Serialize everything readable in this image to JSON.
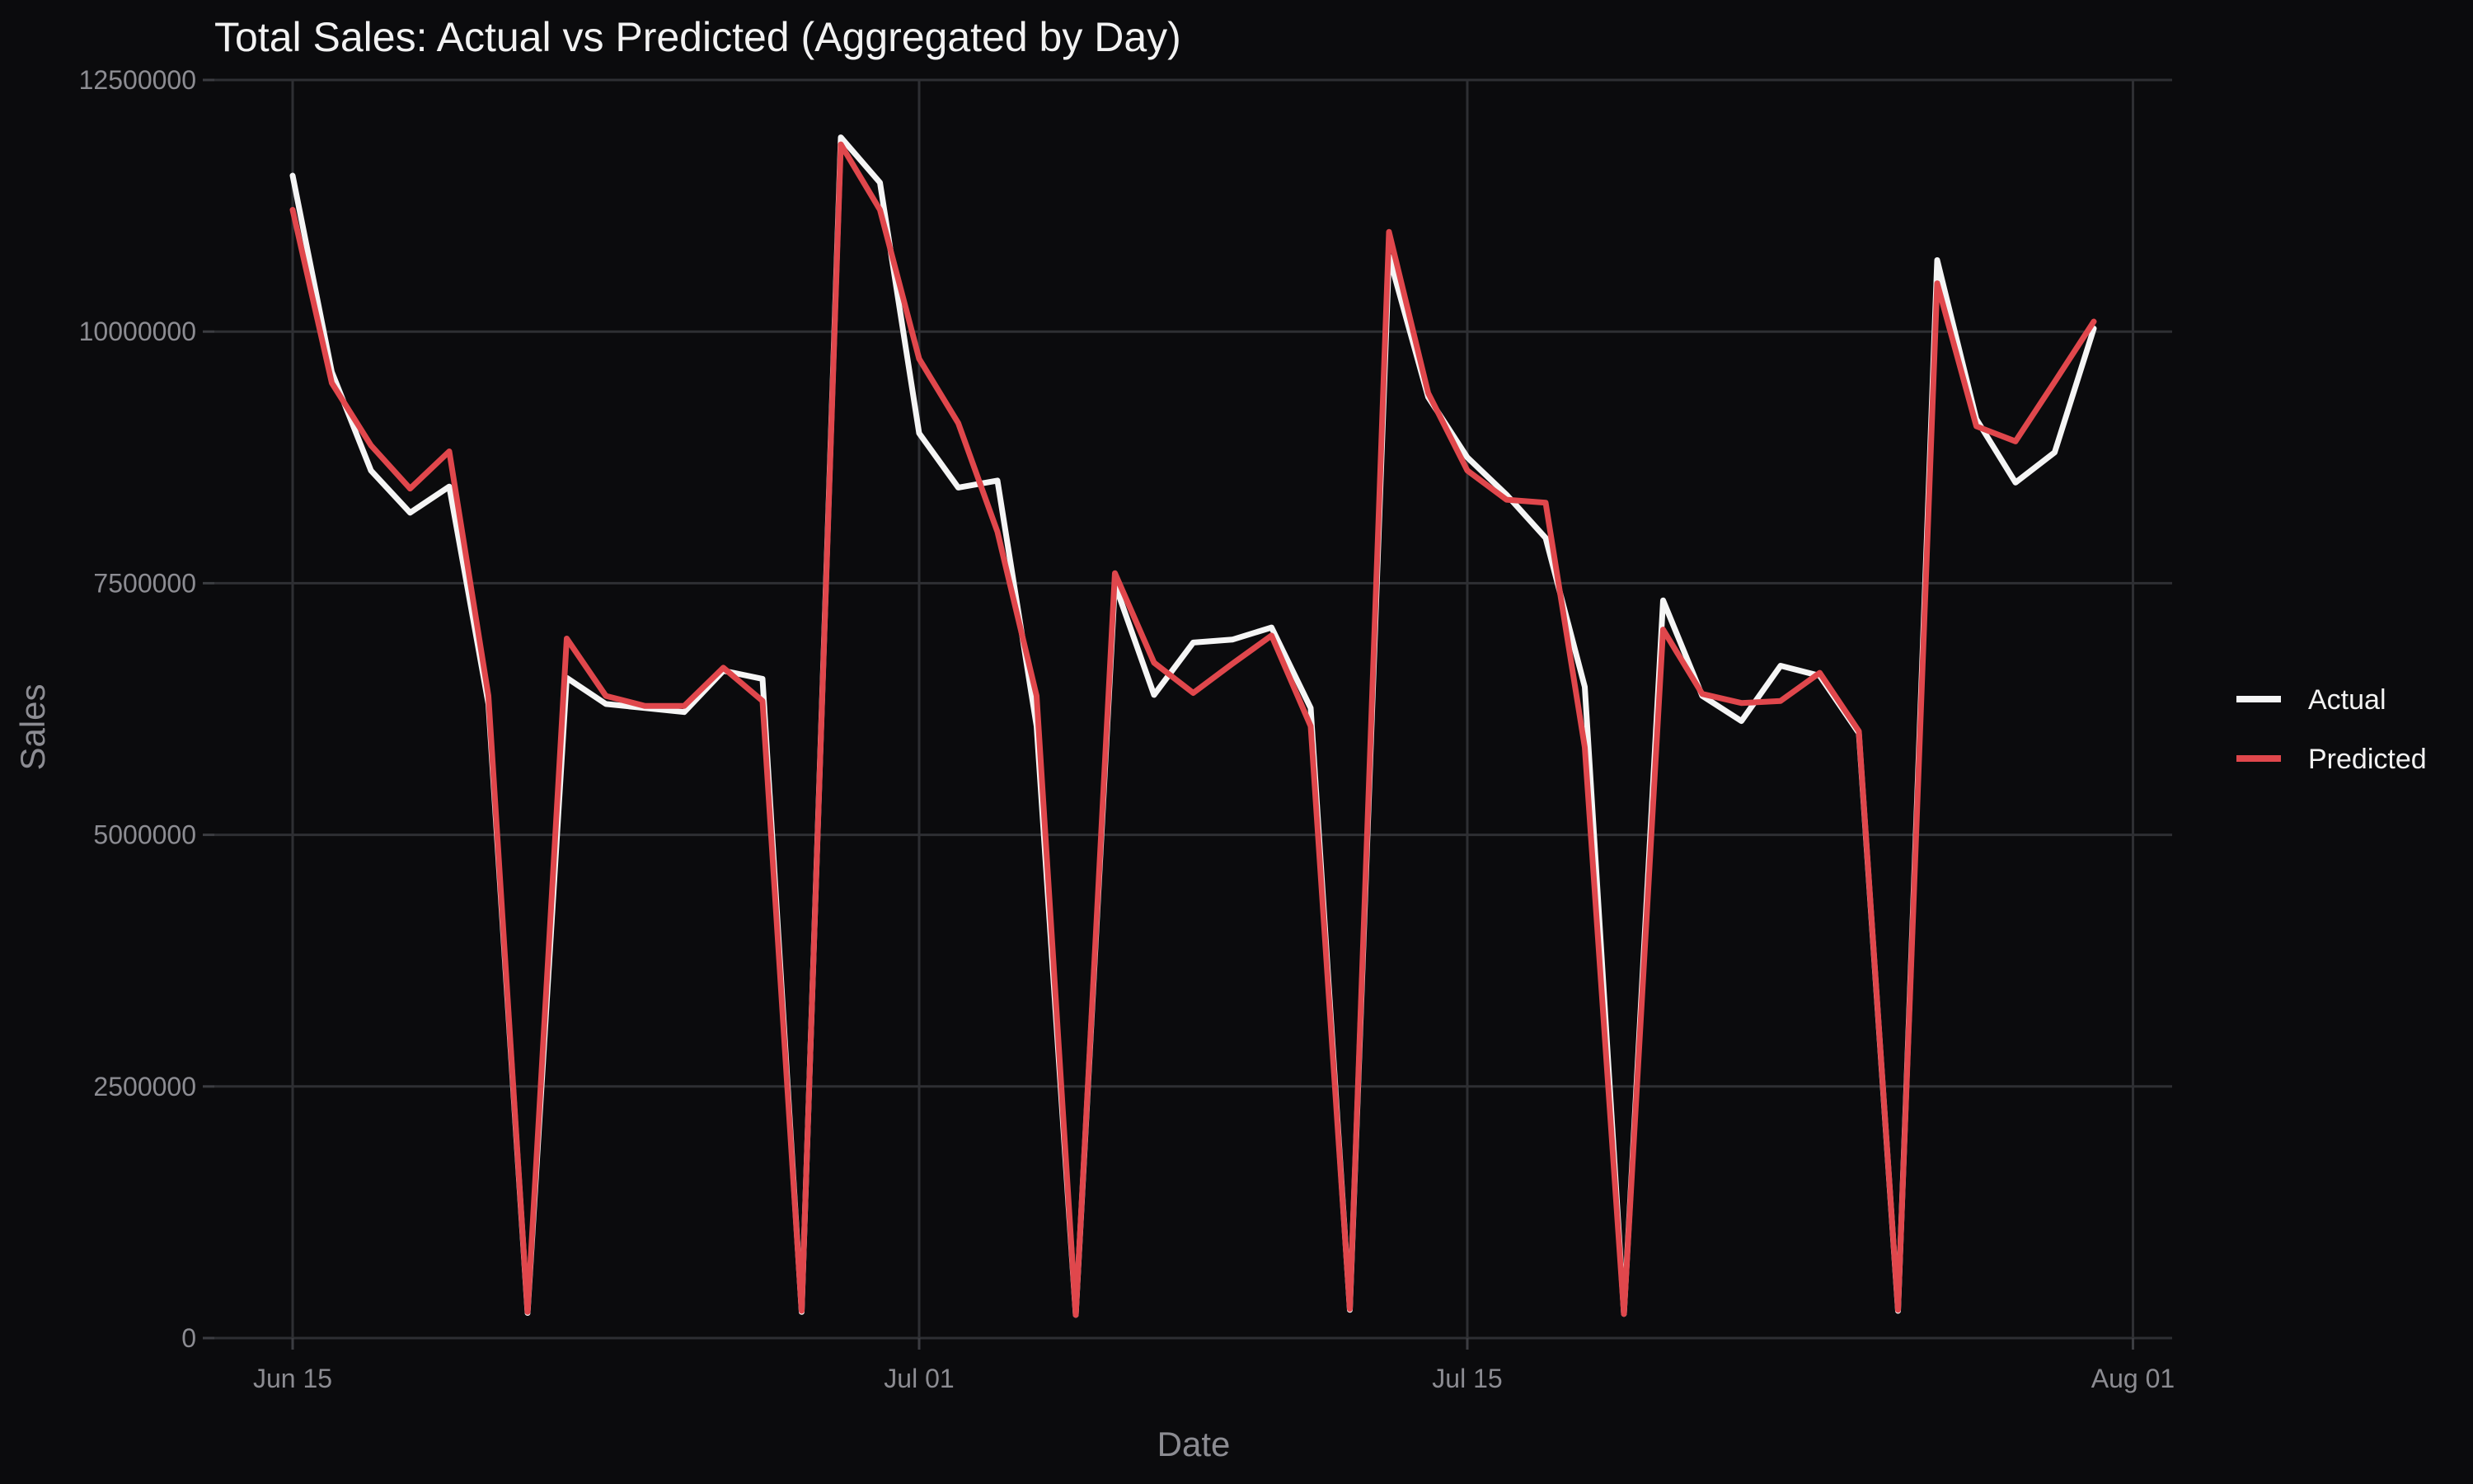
{
  "chart_data": {
    "type": "line",
    "title": "Total Sales: Actual vs Predicted (Aggregated by Day)",
    "xlabel": "Date",
    "ylabel": "Sales",
    "x_axis": {
      "scale": "date",
      "ticks": [
        "2023-06-15",
        "2023-07-01",
        "2023-07-15",
        "2023-08-01"
      ],
      "tick_labels": [
        "Jun 15",
        "Jul 01",
        "Jul 15",
        "Aug 01"
      ]
    },
    "y_axis": {
      "ticks": [
        0,
        2500000,
        5000000,
        7500000,
        10000000,
        12500000
      ],
      "tick_labels": [
        "0",
        "2500000",
        "5000000",
        "7500000",
        "10000000",
        "12500000"
      ],
      "ylim": [
        0,
        12500000
      ]
    },
    "xlim": [
      "2023-06-13",
      "2023-08-02"
    ],
    "grid": true,
    "legend_position": "right",
    "x": [
      "2023-06-15",
      "2023-06-16",
      "2023-06-17",
      "2023-06-18",
      "2023-06-19",
      "2023-06-20",
      "2023-06-21",
      "2023-06-22",
      "2023-06-23",
      "2023-06-24",
      "2023-06-25",
      "2023-06-26",
      "2023-06-27",
      "2023-06-28",
      "2023-06-29",
      "2023-06-30",
      "2023-07-01",
      "2023-07-02",
      "2023-07-03",
      "2023-07-04",
      "2023-07-05",
      "2023-07-06",
      "2023-07-07",
      "2023-07-08",
      "2023-07-09",
      "2023-07-10",
      "2023-07-11",
      "2023-07-12",
      "2023-07-13",
      "2023-07-14",
      "2023-07-15",
      "2023-07-16",
      "2023-07-17",
      "2023-07-18",
      "2023-07-19",
      "2023-07-20",
      "2023-07-21",
      "2023-07-22",
      "2023-07-23",
      "2023-07-24",
      "2023-07-25",
      "2023-07-26",
      "2023-07-27",
      "2023-07-28",
      "2023-07-29",
      "2023-07-30",
      "2023-07-31"
    ],
    "series": [
      {
        "name": "Actual",
        "color": "#f5f5f5",
        "values": [
          11550000,
          9600000,
          8620000,
          8200000,
          8460000,
          6300000,
          250000,
          6560000,
          6300000,
          6260000,
          6220000,
          6630000,
          6550000,
          260000,
          11930000,
          11480000,
          8990000,
          8450000,
          8520000,
          6080000,
          230000,
          7490000,
          6390000,
          6910000,
          6940000,
          7060000,
          6260000,
          280000,
          10750000,
          9350000,
          8750000,
          8380000,
          7950000,
          6470000,
          240000,
          7330000,
          6380000,
          6130000,
          6680000,
          6580000,
          6010000,
          270000,
          10710000,
          9130000,
          8500000,
          8800000,
          10030000
        ]
      },
      {
        "name": "Predicted",
        "color": "#e0474c",
        "values": [
          11210000,
          9490000,
          8870000,
          8440000,
          8810000,
          6380000,
          260000,
          6950000,
          6380000,
          6280000,
          6280000,
          6660000,
          6330000,
          270000,
          11860000,
          11210000,
          9730000,
          9090000,
          8010000,
          6380000,
          230000,
          7600000,
          6710000,
          6410000,
          6700000,
          6980000,
          6080000,
          290000,
          10990000,
          9390000,
          8620000,
          8330000,
          8300000,
          5870000,
          240000,
          7040000,
          6400000,
          6310000,
          6330000,
          6610000,
          6030000,
          280000,
          10480000,
          9060000,
          8910000,
          9500000,
          10100000
        ]
      }
    ]
  }
}
